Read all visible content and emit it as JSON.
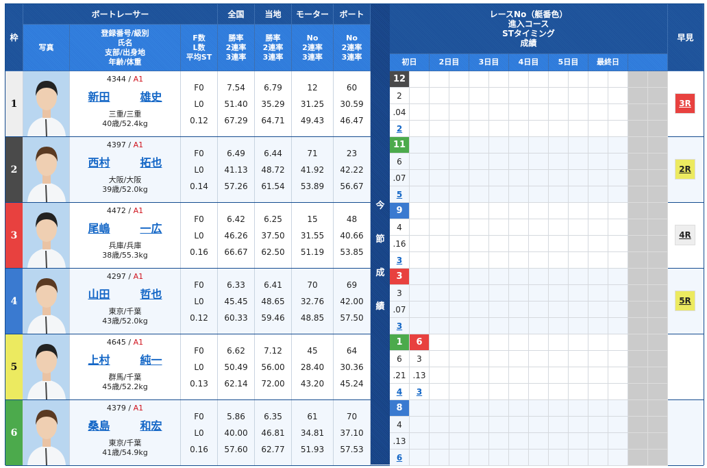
{
  "header": {
    "frame": "枠",
    "racer": "ボートレーサー",
    "photo": "写真",
    "info": [
      "登録番号/級別",
      "氏名",
      "支部/出身地",
      "年齢/体重"
    ],
    "fl": [
      "F数",
      "L数",
      "平均ST"
    ],
    "national": "全国",
    "national_sub": [
      "勝率",
      "2連率",
      "3連率"
    ],
    "local": "当地",
    "local_sub": [
      "勝率",
      "2連率",
      "3連率"
    ],
    "motor": "モーター",
    "motor_sub": [
      "No",
      "2連率",
      "3連率"
    ],
    "boat": "ボート",
    "boat_sub": [
      "No",
      "2連率",
      "3連率"
    ],
    "results_title": [
      "レースNo（艇番色）",
      "進入コース",
      "STタイミング",
      "成績"
    ],
    "days": [
      "初日",
      "2日目",
      "3日目",
      "4日目",
      "5日目",
      "最終日",
      ""
    ],
    "hayami": "早見"
  },
  "current_series": [
    "今",
    "節",
    "成",
    "績"
  ],
  "colors": {
    "1": "#ffffff",
    "2": "#4a4a4a",
    "3": "#e8413f",
    "4": "#3a7ad0",
    "5": "#ecea60",
    "6": "#4caa4c",
    "frame_bg": [
      "#eeeeee",
      "#4a4a4a",
      "#e8413f",
      "#3a7ad0",
      "#ecea60",
      "#4caa4c"
    ]
  },
  "racers": [
    {
      "frame": "1",
      "reg": "4344",
      "cls": "A1",
      "sei": "新田",
      "mei": "雄史",
      "branch": "三重/三重",
      "age": "40歳/52.4kg",
      "f": "F0",
      "l": "L0",
      "st": "0.12",
      "nat": [
        "7.54",
        "51.40",
        "67.29"
      ],
      "loc": [
        "6.79",
        "35.29",
        "64.71"
      ],
      "motor": [
        "12",
        "31.25",
        "49.43"
      ],
      "boat": [
        "60",
        "30.59",
        "46.47"
      ],
      "races": [
        {
          "no": "12",
          "boat": 2,
          "course": "2",
          "st": ".04",
          "rank": "2"
        }
      ],
      "hayami": "3R",
      "hayami_color": "#e8413f"
    },
    {
      "frame": "2",
      "reg": "4397",
      "cls": "A1",
      "sei": "西村",
      "mei": "拓也",
      "branch": "大阪/大阪",
      "age": "39歳/52.0kg",
      "f": "F0",
      "l": "L0",
      "st": "0.14",
      "nat": [
        "6.49",
        "41.13",
        "57.26"
      ],
      "loc": [
        "6.44",
        "48.72",
        "61.54"
      ],
      "motor": [
        "71",
        "41.92",
        "53.89"
      ],
      "boat": [
        "23",
        "42.22",
        "56.67"
      ],
      "races": [
        {
          "no": "11",
          "boat": 6,
          "course": "6",
          "st": ".07",
          "rank": "5"
        }
      ],
      "hayami": "2R",
      "hayami_color": "#ecea60"
    },
    {
      "frame": "3",
      "reg": "4472",
      "cls": "A1",
      "sei": "尾嶋",
      "mei": "一広",
      "branch": "兵庫/兵庫",
      "age": "38歳/55.3kg",
      "f": "F0",
      "l": "L0",
      "st": "0.16",
      "nat": [
        "6.42",
        "46.26",
        "66.67"
      ],
      "loc": [
        "6.25",
        "37.50",
        "62.50"
      ],
      "motor": [
        "15",
        "31.55",
        "51.19"
      ],
      "boat": [
        "48",
        "40.66",
        "53.85"
      ],
      "races": [
        {
          "no": "9",
          "boat": 4,
          "course": "4",
          "st": ".16",
          "rank": "3"
        }
      ],
      "hayami": "4R",
      "hayami_color": "#eeeeee"
    },
    {
      "frame": "4",
      "reg": "4297",
      "cls": "A1",
      "sei": "山田",
      "mei": "哲也",
      "branch": "東京/千葉",
      "age": "43歳/52.0kg",
      "f": "F0",
      "l": "L0",
      "st": "0.12",
      "nat": [
        "6.33",
        "45.45",
        "60.33"
      ],
      "loc": [
        "6.41",
        "48.65",
        "59.46"
      ],
      "motor": [
        "70",
        "32.76",
        "48.85"
      ],
      "boat": [
        "69",
        "42.00",
        "57.50"
      ],
      "races": [
        {
          "no": "3",
          "boat": 3,
          "course": "3",
          "st": ".07",
          "rank": "3"
        }
      ],
      "hayami": "5R",
      "hayami_color": "#ecea60"
    },
    {
      "frame": "5",
      "reg": "4645",
      "cls": "A1",
      "sei": "上村",
      "mei": "純一",
      "branch": "群馬/千葉",
      "age": "45歳/52.2kg",
      "f": "F0",
      "l": "L0",
      "st": "0.13",
      "nat": [
        "6.62",
        "50.49",
        "62.14"
      ],
      "loc": [
        "7.12",
        "56.00",
        "72.00"
      ],
      "motor": [
        "45",
        "28.40",
        "43.20"
      ],
      "boat": [
        "64",
        "30.36",
        "45.24"
      ],
      "races": [
        {
          "no": "1",
          "boat": 6,
          "course": "6",
          "st": ".21",
          "rank": "4"
        },
        {
          "no": "6",
          "boat": 3,
          "course": "3",
          "st": ".13",
          "rank": "3"
        }
      ],
      "hayami": "",
      "hayami_color": ""
    },
    {
      "frame": "6",
      "reg": "4379",
      "cls": "A1",
      "sei": "桑島",
      "mei": "和宏",
      "branch": "東京/千葉",
      "age": "41歳/54.9kg",
      "f": "F0",
      "l": "L0",
      "st": "0.16",
      "nat": [
        "5.86",
        "40.00",
        "57.60"
      ],
      "loc": [
        "6.35",
        "46.81",
        "62.77"
      ],
      "motor": [
        "61",
        "34.81",
        "51.93"
      ],
      "boat": [
        "70",
        "37.10",
        "57.53"
      ],
      "races": [
        {
          "no": "8",
          "boat": 4,
          "course": "4",
          "st": ".13",
          "rank": "6"
        }
      ],
      "hayami": "",
      "hayami_color": ""
    }
  ]
}
